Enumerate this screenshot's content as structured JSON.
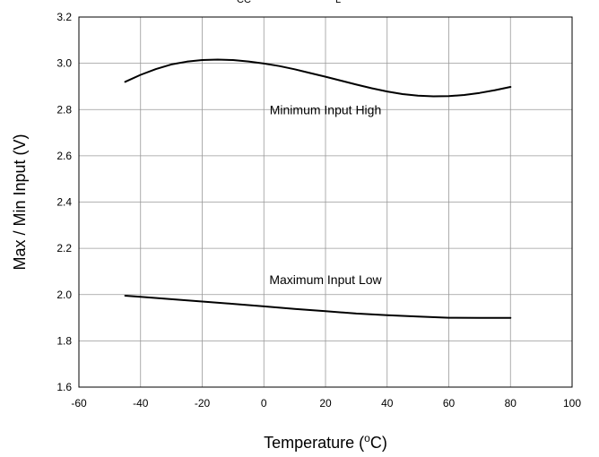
{
  "chart_data": {
    "type": "line",
    "title_fragments": [
      "CC",
      "L"
    ],
    "xlabel": "Temperature (",
    "xlabel_sup": "o",
    "xlabel_suffix": "C)",
    "ylabel": "Max / Min Input (V)",
    "xlim": [
      -60,
      100
    ],
    "ylim": [
      1.6,
      3.2
    ],
    "xticks": [
      "-60",
      "-40",
      "-20",
      "0",
      "20",
      "40",
      "60",
      "80",
      "100"
    ],
    "yticks": [
      "1.6",
      "1.8",
      "2.0",
      "2.2",
      "2.4",
      "2.6",
      "2.8",
      "3.0",
      "3.2"
    ],
    "grid": true,
    "line_color": "#000000",
    "grid_color": "#999999",
    "series": [
      {
        "x": [
          -45,
          -40,
          -35,
          -30,
          -25,
          -20,
          -15,
          -10,
          -5,
          0,
          5,
          10,
          15,
          20,
          25,
          30,
          35,
          40,
          45,
          50,
          55,
          60,
          65,
          70,
          75,
          80
        ],
        "y": [
          2.92,
          2.95,
          2.975,
          2.995,
          3.007,
          3.014,
          3.016,
          3.014,
          3.008,
          2.999,
          2.988,
          2.974,
          2.958,
          2.942,
          2.925,
          2.908,
          2.892,
          2.878,
          2.867,
          2.86,
          2.857,
          2.858,
          2.863,
          2.872,
          2.884,
          2.898
        ]
      },
      {
        "x": [
          -45,
          -40,
          -30,
          -20,
          -10,
          0,
          10,
          20,
          30,
          40,
          50,
          60,
          70,
          80
        ],
        "y": [
          1.995,
          1.99,
          1.98,
          1.97,
          1.96,
          1.949,
          1.938,
          1.928,
          1.918,
          1.911,
          1.905,
          1.9,
          1.899,
          1.899
        ]
      }
    ],
    "annotations": [
      {
        "text": "Minimum Input High",
        "x": 20,
        "y": 2.8
      },
      {
        "text": "Maximum Input Low",
        "x": 20,
        "y": 2.065
      }
    ]
  }
}
